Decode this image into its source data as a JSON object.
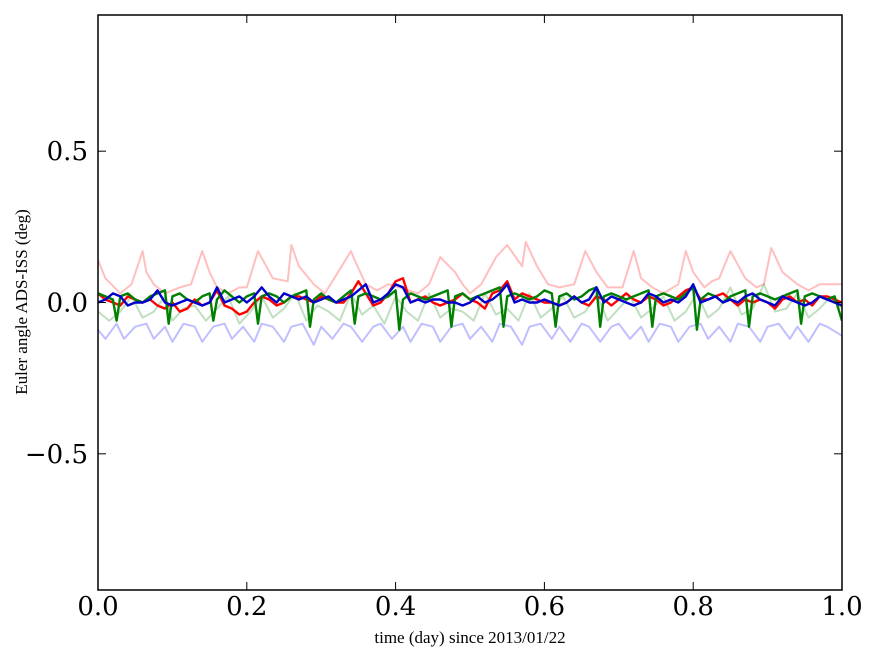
{
  "chart_data": {
    "type": "line",
    "xlabel": "time (day) since 2013/01/22",
    "ylabel": "Euler angle ADS-ISS (deg)",
    "xlim": [
      0.0,
      1.0
    ],
    "ylim": [
      -0.95,
      0.95
    ],
    "xticks": [
      {
        "value": 0.0,
        "label": "0.0"
      },
      {
        "value": 0.2,
        "label": "0.2"
      },
      {
        "value": 0.4,
        "label": "0.4"
      },
      {
        "value": 0.6,
        "label": "0.6"
      },
      {
        "value": 0.8,
        "label": "0.8"
      },
      {
        "value": 1.0,
        "label": "1.0"
      }
    ],
    "yticks": [
      {
        "value": 0.5,
        "label": "0.5"
      },
      {
        "value": 0.0,
        "label": "0.0"
      },
      {
        "value": -0.5,
        "label": "−0.5"
      }
    ],
    "grid": false,
    "legend": "none",
    "series": [
      {
        "color": "#ff0000",
        "opacity": 0.25,
        "width": 2,
        "x": [
          0,
          0.01,
          0.03,
          0.045,
          0.06,
          0.065,
          0.075,
          0.09,
          0.11,
          0.125,
          0.14,
          0.15,
          0.16,
          0.175,
          0.19,
          0.2,
          0.215,
          0.235,
          0.255,
          0.26,
          0.27,
          0.29,
          0.305,
          0.32,
          0.34,
          0.345,
          0.36,
          0.375,
          0.39,
          0.405,
          0.43,
          0.445,
          0.46,
          0.48,
          0.49,
          0.5,
          0.515,
          0.535,
          0.55,
          0.57,
          0.575,
          0.59,
          0.605,
          0.62,
          0.64,
          0.655,
          0.67,
          0.685,
          0.705,
          0.72,
          0.73,
          0.745,
          0.76,
          0.78,
          0.79,
          0.8,
          0.815,
          0.825,
          0.835,
          0.85,
          0.87,
          0.885,
          0.895,
          0.905,
          0.92,
          0.94,
          0.955,
          0.97,
          0.99,
          1.0
        ],
        "y": [
          0.14,
          0.08,
          0.03,
          0.06,
          0.17,
          0.1,
          0.06,
          0.03,
          0.05,
          0.06,
          0.17,
          0.1,
          0.05,
          0.03,
          0.05,
          0.05,
          0.17,
          0.08,
          0.07,
          0.19,
          0.12,
          0.06,
          0.03,
          0.09,
          0.17,
          0.14,
          0.06,
          0.04,
          0.06,
          0.05,
          0.03,
          0.06,
          0.15,
          0.1,
          0.06,
          0.03,
          0.06,
          0.15,
          0.19,
          0.12,
          0.2,
          0.12,
          0.06,
          0.05,
          0.06,
          0.17,
          0.1,
          0.05,
          0.05,
          0.17,
          0.08,
          0.05,
          0.03,
          0.06,
          0.17,
          0.1,
          0.05,
          0.07,
          0.08,
          0.17,
          0.08,
          0.05,
          0.06,
          0.18,
          0.1,
          0.06,
          0.04,
          0.06,
          0.06,
          0.06
        ]
      },
      {
        "color": "#008000",
        "opacity": 0.25,
        "width": 2,
        "x": [
          0,
          0.015,
          0.03,
          0.045,
          0.06,
          0.075,
          0.09,
          0.1,
          0.115,
          0.13,
          0.145,
          0.16,
          0.175,
          0.19,
          0.205,
          0.22,
          0.235,
          0.25,
          0.265,
          0.28,
          0.295,
          0.31,
          0.325,
          0.34,
          0.355,
          0.37,
          0.385,
          0.4,
          0.415,
          0.43,
          0.445,
          0.46,
          0.475,
          0.49,
          0.505,
          0.52,
          0.535,
          0.55,
          0.565,
          0.58,
          0.595,
          0.61,
          0.625,
          0.64,
          0.655,
          0.67,
          0.685,
          0.7,
          0.715,
          0.73,
          0.745,
          0.76,
          0.775,
          0.79,
          0.805,
          0.82,
          0.835,
          0.85,
          0.865,
          0.88,
          0.895,
          0.91,
          0.925,
          0.94,
          0.955,
          0.97,
          0.985,
          1.0
        ],
        "y": [
          -0.03,
          -0.06,
          -0.03,
          0.02,
          -0.05,
          -0.03,
          0.02,
          -0.06,
          -0.02,
          -0.01,
          -0.06,
          -0.02,
          0.02,
          -0.07,
          -0.03,
          0.02,
          -0.05,
          -0.02,
          0.03,
          -0.06,
          -0.01,
          -0.03,
          -0.06,
          0.03,
          -0.04,
          -0.01,
          -0.07,
          0.02,
          -0.03,
          -0.06,
          0.03,
          -0.05,
          -0.02,
          -0.03,
          -0.06,
          0.03,
          -0.04,
          -0.02,
          -0.06,
          0.03,
          -0.05,
          -0.02,
          0.02,
          -0.05,
          -0.03,
          0.03,
          -0.06,
          -0.02,
          0.02,
          -0.05,
          -0.02,
          0.02,
          -0.06,
          -0.03,
          0.03,
          -0.05,
          -0.02,
          0.05,
          -0.04,
          -0.02,
          0.06,
          -0.03,
          -0.02,
          0.03,
          -0.05,
          -0.02,
          0.02,
          -0.02
        ]
      },
      {
        "color": "#0000ff",
        "opacity": 0.25,
        "width": 2,
        "x": [
          0,
          0.01,
          0.025,
          0.035,
          0.05,
          0.065,
          0.075,
          0.09,
          0.1,
          0.115,
          0.13,
          0.14,
          0.155,
          0.17,
          0.18,
          0.195,
          0.21,
          0.22,
          0.235,
          0.25,
          0.26,
          0.275,
          0.29,
          0.3,
          0.315,
          0.33,
          0.34,
          0.355,
          0.37,
          0.38,
          0.395,
          0.41,
          0.42,
          0.435,
          0.45,
          0.46,
          0.475,
          0.49,
          0.5,
          0.515,
          0.53,
          0.54,
          0.555,
          0.57,
          0.58,
          0.595,
          0.61,
          0.62,
          0.635,
          0.65,
          0.66,
          0.675,
          0.69,
          0.7,
          0.715,
          0.73,
          0.74,
          0.755,
          0.77,
          0.78,
          0.795,
          0.81,
          0.82,
          0.835,
          0.85,
          0.86,
          0.875,
          0.89,
          0.9,
          0.915,
          0.93,
          0.94,
          0.955,
          0.97,
          0.98,
          1.0
        ],
        "y": [
          -0.09,
          -0.12,
          -0.07,
          -0.12,
          -0.08,
          -0.07,
          -0.12,
          -0.08,
          -0.13,
          -0.07,
          -0.08,
          -0.13,
          -0.08,
          -0.07,
          -0.12,
          -0.08,
          -0.13,
          -0.07,
          -0.08,
          -0.13,
          -0.08,
          -0.07,
          -0.14,
          -0.08,
          -0.12,
          -0.07,
          -0.08,
          -0.13,
          -0.08,
          -0.07,
          -0.12,
          -0.08,
          -0.13,
          -0.07,
          -0.08,
          -0.13,
          -0.08,
          -0.07,
          -0.12,
          -0.08,
          -0.13,
          -0.07,
          -0.08,
          -0.14,
          -0.08,
          -0.07,
          -0.12,
          -0.08,
          -0.13,
          -0.07,
          -0.08,
          -0.13,
          -0.08,
          -0.07,
          -0.12,
          -0.08,
          -0.13,
          -0.07,
          -0.08,
          -0.13,
          -0.08,
          -0.07,
          -0.12,
          -0.08,
          -0.13,
          -0.07,
          -0.08,
          -0.13,
          -0.08,
          -0.07,
          -0.12,
          -0.08,
          -0.13,
          -0.07,
          -0.08,
          -0.11
        ]
      },
      {
        "color": "#ff0000",
        "opacity": 1,
        "width": 2.4,
        "x": [
          0,
          0.01,
          0.02,
          0.03,
          0.04,
          0.05,
          0.06,
          0.07,
          0.08,
          0.09,
          0.1,
          0.11,
          0.12,
          0.13,
          0.14,
          0.15,
          0.16,
          0.17,
          0.18,
          0.19,
          0.2,
          0.21,
          0.22,
          0.23,
          0.24,
          0.25,
          0.26,
          0.27,
          0.28,
          0.29,
          0.3,
          0.31,
          0.32,
          0.33,
          0.34,
          0.35,
          0.36,
          0.37,
          0.38,
          0.39,
          0.4,
          0.41,
          0.42,
          0.43,
          0.44,
          0.45,
          0.46,
          0.47,
          0.48,
          0.49,
          0.5,
          0.51,
          0.52,
          0.53,
          0.54,
          0.55,
          0.56,
          0.57,
          0.58,
          0.59,
          0.6,
          0.61,
          0.62,
          0.63,
          0.64,
          0.65,
          0.66,
          0.67,
          0.68,
          0.69,
          0.7,
          0.71,
          0.72,
          0.73,
          0.74,
          0.75,
          0.76,
          0.77,
          0.78,
          0.79,
          0.8,
          0.81,
          0.82,
          0.83,
          0.84,
          0.85,
          0.86,
          0.87,
          0.88,
          0.89,
          0.9,
          0.91,
          0.92,
          0.93,
          0.94,
          0.95,
          0.96,
          0.97,
          0.98,
          0.99,
          1.0
        ],
        "y": [
          0.03,
          0.01,
          0.0,
          -0.01,
          0.02,
          0.01,
          0.0,
          0.01,
          -0.01,
          -0.02,
          0.0,
          -0.03,
          -0.02,
          0.01,
          -0.01,
          0.0,
          0.04,
          -0.01,
          -0.02,
          -0.04,
          -0.03,
          0.0,
          0.02,
          0.01,
          -0.01,
          0.0,
          0.02,
          0.02,
          0.01,
          0.0,
          0.02,
          0.01,
          0.0,
          0.0,
          0.03,
          0.07,
          0.03,
          -0.01,
          0.0,
          0.03,
          0.07,
          0.08,
          0.0,
          0.01,
          0.02,
          0.0,
          -0.01,
          0.0,
          0.01,
          0.03,
          0.01,
          0.0,
          -0.02,
          0.03,
          0.04,
          0.07,
          0.01,
          0.03,
          0.02,
          0.01,
          0.0,
          0.0,
          -0.01,
          0.0,
          0.02,
          0.0,
          -0.01,
          0.02,
          0.01,
          -0.01,
          0.01,
          0.03,
          0.01,
          0.0,
          0.02,
          0.01,
          -0.01,
          0.0,
          0.02,
          0.04,
          0.05,
          0.01,
          0.01,
          0.02,
          0.03,
          0.01,
          -0.01,
          0.01,
          0.0,
          0.01,
          0.0,
          -0.02,
          0.01,
          0.02,
          0.0,
          0.01,
          -0.01,
          0.02,
          0.02,
          0.01,
          0.0
        ]
      },
      {
        "color": "#008000",
        "opacity": 1,
        "width": 2.4,
        "x": [
          0,
          0.01,
          0.02,
          0.025,
          0.03,
          0.04,
          0.05,
          0.06,
          0.07,
          0.08,
          0.09,
          0.095,
          0.1,
          0.11,
          0.12,
          0.13,
          0.14,
          0.15,
          0.155,
          0.16,
          0.17,
          0.18,
          0.19,
          0.2,
          0.21,
          0.215,
          0.22,
          0.23,
          0.24,
          0.25,
          0.26,
          0.27,
          0.28,
          0.285,
          0.29,
          0.3,
          0.31,
          0.32,
          0.33,
          0.34,
          0.345,
          0.35,
          0.36,
          0.37,
          0.38,
          0.39,
          0.4,
          0.405,
          0.41,
          0.42,
          0.43,
          0.44,
          0.45,
          0.46,
          0.47,
          0.475,
          0.48,
          0.49,
          0.5,
          0.51,
          0.52,
          0.53,
          0.54,
          0.545,
          0.55,
          0.56,
          0.57,
          0.58,
          0.59,
          0.6,
          0.61,
          0.615,
          0.62,
          0.63,
          0.64,
          0.65,
          0.66,
          0.67,
          0.675,
          0.68,
          0.69,
          0.7,
          0.71,
          0.72,
          0.73,
          0.74,
          0.745,
          0.75,
          0.76,
          0.77,
          0.78,
          0.79,
          0.8,
          0.805,
          0.81,
          0.82,
          0.83,
          0.84,
          0.85,
          0.86,
          0.87,
          0.875,
          0.88,
          0.89,
          0.9,
          0.91,
          0.92,
          0.93,
          0.94,
          0.945,
          0.95,
          0.96,
          0.97,
          0.98,
          0.99,
          1.0
        ],
        "y": [
          0.03,
          0.02,
          0.01,
          -0.06,
          0.02,
          0.03,
          0.01,
          0.0,
          0.02,
          0.03,
          0.04,
          -0.07,
          0.02,
          0.03,
          0.01,
          0.0,
          0.02,
          0.03,
          -0.06,
          0.01,
          0.04,
          0.02,
          0.0,
          0.02,
          0.03,
          -0.07,
          0.02,
          0.03,
          0.02,
          0.0,
          0.02,
          0.03,
          0.04,
          -0.08,
          0.01,
          0.03,
          0.01,
          0.0,
          0.02,
          0.04,
          -0.07,
          0.02,
          0.03,
          0.02,
          0.01,
          0.02,
          0.04,
          -0.09,
          0.01,
          0.03,
          0.02,
          0.01,
          0.02,
          0.03,
          0.04,
          -0.08,
          0.02,
          0.03,
          0.01,
          0.02,
          0.03,
          0.04,
          0.05,
          -0.08,
          0.02,
          0.03,
          0.02,
          0.01,
          0.02,
          0.04,
          0.03,
          -0.08,
          0.02,
          0.03,
          0.01,
          0.02,
          0.04,
          0.05,
          -0.08,
          0.02,
          0.03,
          0.02,
          0.01,
          0.02,
          0.03,
          0.04,
          -0.08,
          0.02,
          0.03,
          0.02,
          0.01,
          0.03,
          0.05,
          -0.09,
          0.01,
          0.03,
          0.02,
          0.0,
          0.02,
          0.03,
          0.04,
          -0.08,
          0.02,
          0.03,
          0.02,
          0.01,
          0.02,
          0.03,
          0.04,
          -0.07,
          0.02,
          0.03,
          0.02,
          0.01,
          0.02,
          -0.06
        ]
      },
      {
        "color": "#0000cc",
        "opacity": 1,
        "width": 2.4,
        "x": [
          0,
          0.01,
          0.02,
          0.03,
          0.04,
          0.05,
          0.06,
          0.07,
          0.08,
          0.09,
          0.1,
          0.11,
          0.12,
          0.13,
          0.14,
          0.15,
          0.16,
          0.17,
          0.18,
          0.19,
          0.2,
          0.21,
          0.22,
          0.23,
          0.24,
          0.25,
          0.26,
          0.27,
          0.28,
          0.29,
          0.3,
          0.31,
          0.32,
          0.33,
          0.34,
          0.35,
          0.36,
          0.37,
          0.38,
          0.39,
          0.4,
          0.41,
          0.42,
          0.43,
          0.44,
          0.45,
          0.46,
          0.47,
          0.48,
          0.49,
          0.5,
          0.51,
          0.52,
          0.53,
          0.54,
          0.55,
          0.56,
          0.57,
          0.58,
          0.59,
          0.6,
          0.61,
          0.62,
          0.63,
          0.64,
          0.65,
          0.66,
          0.67,
          0.68,
          0.69,
          0.7,
          0.71,
          0.72,
          0.73,
          0.74,
          0.75,
          0.76,
          0.77,
          0.78,
          0.79,
          0.8,
          0.81,
          0.82,
          0.83,
          0.84,
          0.85,
          0.86,
          0.87,
          0.88,
          0.89,
          0.9,
          0.91,
          0.92,
          0.93,
          0.94,
          0.95,
          0.96,
          0.97,
          0.98,
          0.99,
          1.0
        ],
        "y": [
          0.0,
          0.01,
          0.03,
          0.02,
          -0.01,
          0.0,
          0.0,
          0.01,
          0.04,
          0.0,
          -0.01,
          0.0,
          0.01,
          0.0,
          -0.01,
          0.0,
          0.05,
          0.0,
          0.01,
          0.02,
          0.0,
          0.02,
          0.05,
          0.02,
          0.0,
          0.03,
          0.02,
          0.01,
          0.02,
          0.0,
          0.01,
          0.02,
          0.0,
          0.01,
          0.02,
          0.04,
          0.06,
          0.0,
          0.01,
          0.03,
          0.06,
          0.05,
          0.0,
          0.01,
          0.0,
          0.01,
          0.01,
          0.0,
          0.0,
          -0.01,
          0.0,
          0.02,
          0.0,
          0.01,
          0.03,
          0.06,
          0.0,
          0.01,
          0.0,
          0.0,
          0.01,
          0.0,
          -0.01,
          0.0,
          0.02,
          0.0,
          0.01,
          0.05,
          0.0,
          0.02,
          0.01,
          0.0,
          -0.01,
          0.0,
          0.03,
          0.02,
          0.0,
          0.01,
          0.0,
          0.02,
          0.06,
          0.0,
          0.01,
          0.02,
          0.0,
          0.01,
          0.0,
          0.02,
          0.03,
          0.01,
          0.0,
          -0.01,
          0.02,
          0.01,
          0.0,
          -0.01,
          0.0,
          0.02,
          0.01,
          0.0,
          -0.01
        ]
      }
    ]
  }
}
